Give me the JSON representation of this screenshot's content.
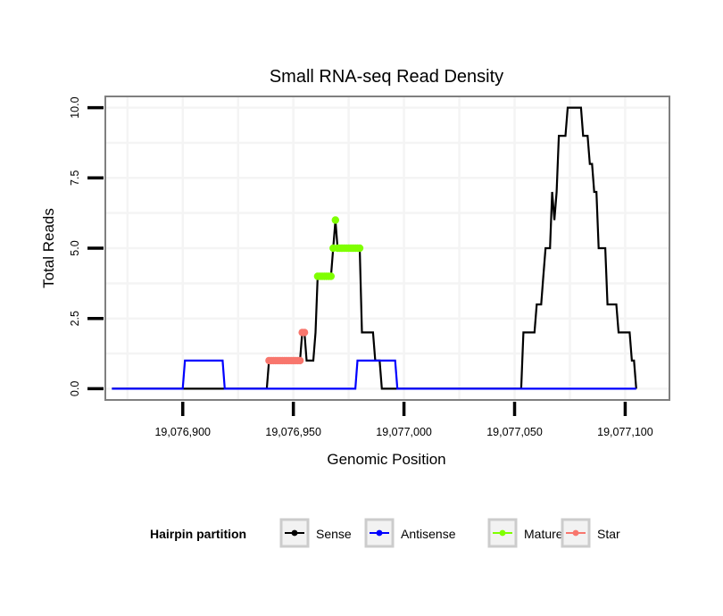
{
  "chart_data": {
    "type": "line",
    "title": "Small RNA-seq Read Density",
    "xlabel": "Genomic Position",
    "ylabel": "Total Reads",
    "xlim": [
      19076865,
      19077120
    ],
    "ylim": [
      -0.4,
      10.4
    ],
    "x_ticks": [
      19076900,
      19076950,
      19077000,
      19077050,
      19077100
    ],
    "x_tick_labels": [
      "19,076,900",
      "19,076,950",
      "19,077,000",
      "19,077,050",
      "19,077,100"
    ],
    "y_ticks": [
      0,
      2.5,
      5,
      7.5,
      10
    ],
    "y_tick_labels": [
      "0.0",
      "2.5",
      "5.0",
      "7.5",
      "10.0"
    ],
    "grid": true,
    "legend": {
      "title": "Hairpin partition",
      "position": "bottom",
      "entries": [
        "Sense",
        "Antisense",
        "Mature",
        "Star"
      ]
    },
    "series": [
      {
        "name": "Sense",
        "color": "#000000",
        "kind": "line",
        "points": [
          [
            19076868,
            0
          ],
          [
            19076938,
            0
          ],
          [
            19076939,
            1
          ],
          [
            19076953,
            1
          ],
          [
            19076954,
            2
          ],
          [
            19076955,
            2
          ],
          [
            19076956,
            1
          ],
          [
            19076959,
            1
          ],
          [
            19076960,
            2
          ],
          [
            19076961,
            4
          ],
          [
            19076967,
            4
          ],
          [
            19076968,
            5
          ],
          [
            19076969,
            6
          ],
          [
            19076970,
            5
          ],
          [
            19076980,
            5
          ],
          [
            19076981,
            2
          ],
          [
            19076986,
            2
          ],
          [
            19076987,
            1
          ],
          [
            19076989,
            1
          ],
          [
            19076990,
            0
          ],
          [
            19077053,
            0
          ],
          [
            19077054,
            2
          ],
          [
            19077059,
            2
          ],
          [
            19077060,
            3
          ],
          [
            19077062,
            3
          ],
          [
            19077063,
            4
          ],
          [
            19077064,
            5
          ],
          [
            19077066,
            5
          ],
          [
            19077067,
            7
          ],
          [
            19077068,
            6
          ],
          [
            19077069,
            7
          ],
          [
            19077070,
            9
          ],
          [
            19077073,
            9
          ],
          [
            19077074,
            10
          ],
          [
            19077080,
            10
          ],
          [
            19077081,
            9
          ],
          [
            19077083,
            9
          ],
          [
            19077084,
            8
          ],
          [
            19077085,
            8
          ],
          [
            19077086,
            7
          ],
          [
            19077087,
            7
          ],
          [
            19077088,
            5
          ],
          [
            19077091,
            5
          ],
          [
            19077092,
            3
          ],
          [
            19077096,
            3
          ],
          [
            19077097,
            2
          ],
          [
            19077102,
            2
          ],
          [
            19077103,
            1
          ],
          [
            19077104,
            1
          ],
          [
            19077105,
            0
          ]
        ]
      },
      {
        "name": "Antisense",
        "color": "#0000ff",
        "kind": "line",
        "points": [
          [
            19076868,
            0
          ],
          [
            19076900,
            0
          ],
          [
            19076901,
            1
          ],
          [
            19076918,
            1
          ],
          [
            19076919,
            0
          ],
          [
            19076978,
            0
          ],
          [
            19076979,
            1
          ],
          [
            19076996,
            1
          ],
          [
            19076997,
            0
          ],
          [
            19077105,
            0
          ]
        ]
      },
      {
        "name": "Mature",
        "color": "#7fff00",
        "kind": "points",
        "points": [
          [
            19076961,
            4
          ],
          [
            19076962,
            4
          ],
          [
            19076963,
            4
          ],
          [
            19076964,
            4
          ],
          [
            19076965,
            4
          ],
          [
            19076966,
            4
          ],
          [
            19076967,
            4
          ],
          [
            19076969,
            6
          ],
          [
            19076968,
            5
          ],
          [
            19076970,
            5
          ],
          [
            19076971,
            5
          ],
          [
            19076972,
            5
          ],
          [
            19076973,
            5
          ],
          [
            19076974,
            5
          ],
          [
            19076975,
            5
          ],
          [
            19076976,
            5
          ],
          [
            19076977,
            5
          ],
          [
            19076978,
            5
          ],
          [
            19076979,
            5
          ],
          [
            19076980,
            5
          ]
        ]
      },
      {
        "name": "Star",
        "color": "#f8766d",
        "kind": "points",
        "points": [
          [
            19076939,
            1
          ],
          [
            19076940,
            1
          ],
          [
            19076941,
            1
          ],
          [
            19076942,
            1
          ],
          [
            19076943,
            1
          ],
          [
            19076944,
            1
          ],
          [
            19076945,
            1
          ],
          [
            19076946,
            1
          ],
          [
            19076947,
            1
          ],
          [
            19076948,
            1
          ],
          [
            19076949,
            1
          ],
          [
            19076950,
            1
          ],
          [
            19076951,
            1
          ],
          [
            19076952,
            1
          ],
          [
            19076953,
            1
          ],
          [
            19076954,
            2
          ],
          [
            19076955,
            2
          ]
        ]
      }
    ]
  }
}
